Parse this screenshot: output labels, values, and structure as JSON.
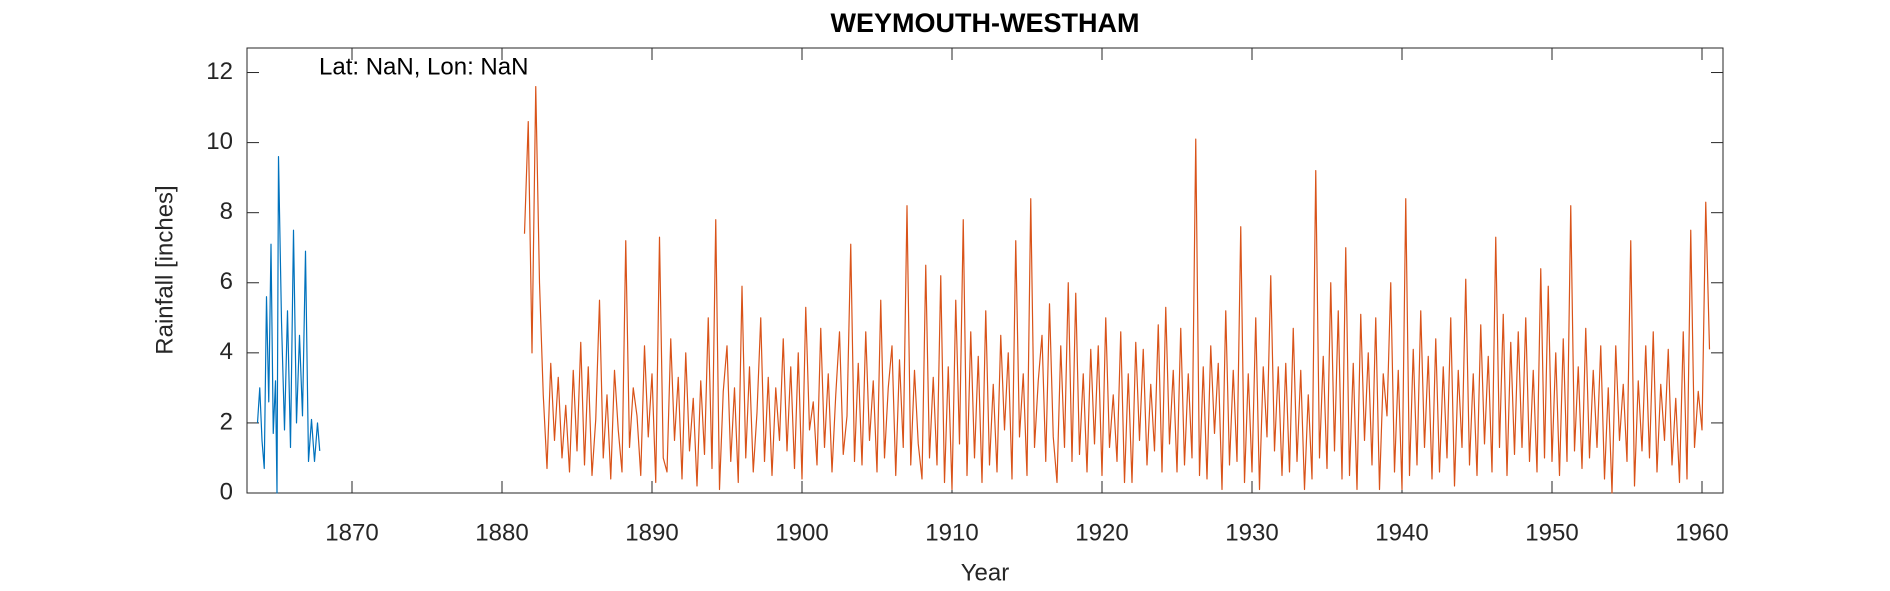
{
  "chart_data": {
    "type": "line",
    "title": "WEYMOUTH-WESTHAM",
    "xlabel": "Year",
    "ylabel": "Rainfall [inches]",
    "annotation": "Lat: NaN, Lon: NaN",
    "xlim": [
      1863,
      1961.4
    ],
    "ylim": [
      0,
      12.7
    ],
    "xticks": [
      1870,
      1880,
      1890,
      1900,
      1910,
      1920,
      1930,
      1940,
      1950,
      1960
    ],
    "yticks": [
      0,
      2,
      4,
      6,
      8,
      10,
      12
    ],
    "series": [
      {
        "color": "#0072bd",
        "x": [
          1863.7,
          1863.85,
          1864.0,
          1864.15,
          1864.3,
          1864.45,
          1864.6,
          1864.75,
          1864.9,
          1865.0,
          1865.1,
          1865.3,
          1865.5,
          1865.7,
          1865.9,
          1866.1,
          1866.3,
          1866.5,
          1866.7,
          1866.9,
          1867.1,
          1867.3,
          1867.5,
          1867.7,
          1867.85
        ],
        "values": [
          2.0,
          3.0,
          1.5,
          0.7,
          5.6,
          2.6,
          7.1,
          1.7,
          3.2,
          0.0,
          9.6,
          4.9,
          1.8,
          5.2,
          1.3,
          7.5,
          2.0,
          4.5,
          2.2,
          6.9,
          0.9,
          2.1,
          0.9,
          2.0,
          1.2
        ]
      },
      {
        "color": "#d95319",
        "x": [
          1881.5,
          1881.75,
          1882,
          1882.25,
          1882.5,
          1882.75,
          1883,
          1883.25,
          1883.5,
          1883.75,
          1884,
          1884.25,
          1884.5,
          1884.75,
          1885,
          1885.25,
          1885.5,
          1885.75,
          1886,
          1886.25,
          1886.5,
          1886.75,
          1887,
          1887.25,
          1887.5,
          1887.75,
          1888,
          1888.25,
          1888.5,
          1888.75,
          1889,
          1889.25,
          1889.5,
          1889.75,
          1890,
          1890.25,
          1890.5,
          1890.75,
          1891,
          1891.25,
          1891.5,
          1891.75,
          1892,
          1892.25,
          1892.5,
          1892.75,
          1893,
          1893.25,
          1893.5,
          1893.75,
          1894,
          1894.25,
          1894.5,
          1894.75,
          1895,
          1895.25,
          1895.5,
          1895.75,
          1896,
          1896.25,
          1896.5,
          1896.75,
          1897,
          1897.25,
          1897.5,
          1897.75,
          1898,
          1898.25,
          1898.5,
          1898.75,
          1899,
          1899.25,
          1899.5,
          1899.75,
          1900,
          1900.25,
          1900.5,
          1900.75,
          1901,
          1901.25,
          1901.5,
          1901.75,
          1902,
          1902.25,
          1902.5,
          1902.75,
          1903,
          1903.25,
          1903.5,
          1903.75,
          1904,
          1904.25,
          1904.5,
          1904.75,
          1905,
          1905.25,
          1905.5,
          1905.75,
          1906,
          1906.25,
          1906.5,
          1906.75,
          1907,
          1907.25,
          1907.5,
          1907.75,
          1908,
          1908.25,
          1908.5,
          1908.75,
          1909,
          1909.25,
          1909.5,
          1909.75,
          1910,
          1910.25,
          1910.5,
          1910.75,
          1911,
          1911.25,
          1911.5,
          1911.75,
          1912,
          1912.25,
          1912.5,
          1912.75,
          1913,
          1913.25,
          1913.5,
          1913.75,
          1914,
          1914.25,
          1914.5,
          1914.75,
          1915,
          1915.25,
          1915.5,
          1915.75,
          1916,
          1916.25,
          1916.5,
          1916.75,
          1917,
          1917.25,
          1917.5,
          1917.75,
          1918,
          1918.25,
          1918.5,
          1918.75,
          1919,
          1919.25,
          1919.5,
          1919.75,
          1920,
          1920.25,
          1920.5,
          1920.75,
          1921,
          1921.25,
          1921.5,
          1921.75,
          1922,
          1922.25,
          1922.5,
          1922.75,
          1923,
          1923.25,
          1923.5,
          1923.75,
          1924,
          1924.25,
          1924.5,
          1924.75,
          1925,
          1925.25,
          1925.5,
          1925.75,
          1926,
          1926.25,
          1926.5,
          1926.75,
          1927,
          1927.25,
          1927.5,
          1927.75,
          1928,
          1928.25,
          1928.5,
          1928.75,
          1929,
          1929.25,
          1929.5,
          1929.75,
          1930,
          1930.25,
          1930.5,
          1930.75,
          1931,
          1931.25,
          1931.5,
          1931.75,
          1932,
          1932.25,
          1932.5,
          1932.75,
          1933,
          1933.25,
          1933.5,
          1933.75,
          1934,
          1934.25,
          1934.5,
          1934.75,
          1935,
          1935.25,
          1935.5,
          1935.75,
          1936,
          1936.25,
          1936.5,
          1936.75,
          1937,
          1937.25,
          1937.5,
          1937.75,
          1938,
          1938.25,
          1938.5,
          1938.75,
          1939,
          1939.25,
          1939.5,
          1939.75,
          1940,
          1940.25,
          1940.5,
          1940.75,
          1941,
          1941.25,
          1941.5,
          1941.75,
          1942,
          1942.25,
          1942.5,
          1942.75,
          1943,
          1943.25,
          1943.5,
          1943.75,
          1944,
          1944.25,
          1944.5,
          1944.75,
          1945,
          1945.25,
          1945.5,
          1945.75,
          1946,
          1946.25,
          1946.5,
          1946.75,
          1947,
          1947.25,
          1947.5,
          1947.75,
          1948,
          1948.25,
          1948.5,
          1948.75,
          1949,
          1949.25,
          1949.5,
          1949.75,
          1950,
          1950.25,
          1950.5,
          1950.75,
          1951,
          1951.25,
          1951.5,
          1951.75,
          1952,
          1952.25,
          1952.5,
          1952.75,
          1953,
          1953.25,
          1953.5,
          1953.75,
          1954,
          1954.25,
          1954.5,
          1954.75,
          1955,
          1955.25,
          1955.5,
          1955.75,
          1956,
          1956.25,
          1956.5,
          1956.75,
          1957,
          1957.25,
          1957.5,
          1957.75,
          1958,
          1958.25,
          1958.5,
          1958.75,
          1959,
          1959.25,
          1959.5,
          1959.75,
          1960,
          1960.25,
          1960.5
        ],
        "values": [
          7.4,
          10.6,
          4.0,
          11.6,
          6.0,
          2.8,
          0.7,
          3.7,
          1.5,
          3.3,
          1.0,
          2.5,
          0.6,
          3.5,
          1.2,
          4.3,
          0.8,
          3.6,
          0.5,
          2.1,
          5.5,
          1.0,
          2.8,
          0.4,
          3.5,
          1.8,
          0.6,
          7.2,
          1.3,
          3.0,
          2.2,
          0.5,
          4.2,
          1.6,
          3.4,
          0.3,
          7.3,
          1.0,
          0.6,
          4.4,
          1.5,
          3.3,
          0.4,
          4.0,
          1.2,
          2.7,
          0.2,
          3.2,
          1.1,
          5.0,
          0.7,
          7.8,
          0.1,
          2.9,
          4.2,
          0.9,
          3.0,
          0.3,
          5.9,
          1.0,
          3.6,
          0.6,
          2.3,
          5.0,
          0.9,
          3.3,
          0.5,
          3.0,
          1.5,
          4.4,
          1.2,
          3.6,
          0.7,
          4.0,
          0.4,
          5.3,
          1.8,
          2.6,
          0.8,
          4.7,
          1.3,
          3.4,
          0.6,
          2.8,
          4.6,
          1.1,
          2.2,
          7.1,
          0.9,
          3.7,
          0.8,
          4.6,
          1.5,
          3.2,
          0.6,
          5.5,
          1.0,
          3.0,
          4.2,
          0.5,
          3.8,
          1.3,
          8.2,
          0.8,
          3.5,
          1.4,
          0.4,
          6.5,
          1.0,
          3.3,
          0.8,
          6.2,
          0.3,
          3.6,
          0.1,
          5.5,
          1.4,
          7.8,
          0.5,
          4.6,
          1.0,
          3.9,
          0.3,
          5.2,
          0.8,
          3.1,
          0.6,
          4.5,
          1.8,
          4.0,
          0.4,
          7.2,
          1.6,
          3.4,
          0.5,
          8.4,
          1.3,
          3.2,
          4.5,
          0.9,
          5.4,
          1.6,
          0.3,
          4.2,
          1.3,
          6.0,
          0.9,
          5.7,
          1.1,
          3.4,
          0.6,
          4.1,
          1.4,
          4.2,
          0.5,
          5.0,
          1.3,
          2.8,
          0.9,
          4.6,
          0.3,
          3.4,
          0.3,
          4.3,
          1.5,
          4.1,
          0.8,
          3.1,
          1.2,
          4.8,
          0.6,
          5.3,
          1.4,
          3.5,
          0.6,
          4.7,
          0.8,
          3.4,
          1.0,
          10.1,
          0.5,
          3.6,
          0.4,
          4.2,
          1.7,
          3.7,
          0.1,
          5.2,
          0.8,
          3.5,
          0.9,
          7.6,
          0.3,
          3.4,
          0.6,
          5.0,
          0.1,
          3.6,
          1.6,
          6.2,
          1.2,
          3.6,
          0.5,
          3.7,
          0.6,
          4.7,
          0.9,
          3.5,
          0.1,
          2.8,
          0.4,
          9.2,
          1.0,
          3.9,
          0.7,
          6.0,
          1.2,
          5.2,
          0.4,
          7.0,
          0.5,
          3.7,
          0.1,
          5.1,
          1.5,
          4.0,
          0.8,
          5.0,
          0.1,
          3.4,
          2.2,
          6.0,
          0.6,
          3.5,
          0.1,
          8.4,
          0.5,
          4.1,
          0.8,
          5.2,
          1.3,
          3.9,
          0.4,
          4.4,
          0.6,
          3.6,
          1.0,
          5.0,
          0.2,
          3.5,
          1.3,
          6.1,
          0.8,
          3.4,
          0.5,
          4.8,
          1.4,
          3.9,
          0.6,
          7.3,
          1.3,
          5.1,
          0.5,
          4.3,
          1.1,
          4.6,
          1.3,
          5.0,
          0.9,
          3.5,
          0.6,
          6.4,
          1.0,
          5.9,
          0.9,
          4.0,
          0.5,
          4.4,
          0.9,
          8.2,
          1.2,
          3.6,
          0.7,
          4.7,
          1.0,
          3.5,
          1.3,
          4.2,
          0.4,
          3.0,
          0.0,
          4.2,
          1.5,
          3.1,
          0.9,
          7.2,
          0.2,
          3.2,
          1.2,
          4.2,
          1.0,
          4.6,
          0.6,
          3.1,
          1.5,
          4.1,
          0.8,
          2.7,
          0.3,
          4.6,
          0.4,
          7.5,
          1.3,
          2.9,
          1.8,
          8.3,
          4.1
        ]
      }
    ]
  }
}
